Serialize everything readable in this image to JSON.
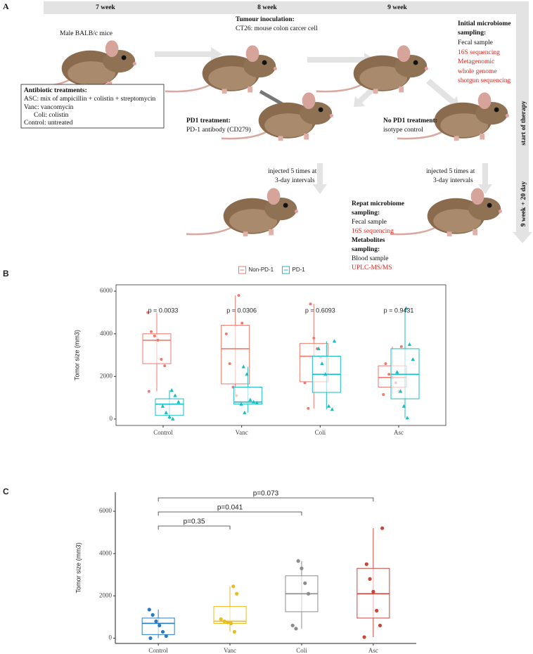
{
  "diagram": {
    "panel_label": "A",
    "timeline": [
      "7 week",
      "8 week",
      "9 week"
    ],
    "side_labels": [
      "start of therapy",
      "9 week + 20 day"
    ],
    "mouse_label": "Male BALB/c mice",
    "antibiotics": [
      "Antibiotic treatments:",
      "ASC: mix of ampicillin + colistin + streptomycin",
      "Vanc: vancomycin",
      "Coli: colistin",
      "Control: untreated"
    ],
    "inoculation": [
      "Tumour inoculation:",
      "CT26: mouse colon carcer cell"
    ],
    "initial_sampling": [
      "Initial microbiome",
      "sampling:",
      "Fecal sample",
      "16S sequencing",
      "Metagenomic",
      "whole genome",
      "shotgun sequencing"
    ],
    "pd1": [
      "PD1 treatment:",
      "PD-1 antibody (CD279)"
    ],
    "no_pd1": [
      "No PD1 treatment:",
      "isotype control"
    ],
    "injection_left": [
      "injected 5 times at",
      "3-day intervals"
    ],
    "injection_right": [
      "injected 5 times at",
      "3-day intervals"
    ],
    "repeat_sampling": [
      "Repat microbiome",
      "sampling:",
      "Fecal sample",
      "16S sequencing",
      "Metabolites",
      "sampling:",
      "Blood sample",
      "UPLC-MS/MS"
    ]
  },
  "chart_data": [
    {
      "type": "box",
      "panel_label": "B",
      "ylabel": "Tomor size (mm3)",
      "ylim": [
        -300,
        6300
      ],
      "yticks": [
        0,
        2000,
        4000,
        6000
      ],
      "legend": "top",
      "categories": [
        "Control",
        "Vanc",
        "Coli",
        "Asc"
      ],
      "annotations": [
        "p = 0.0033",
        "p = 0.0306",
        "p = 0.6093",
        "p = 0.9431"
      ],
      "series": [
        {
          "name": "Non-PD-1",
          "color": "#f07a6e",
          "boxes": [
            {
              "whislo": 1300,
              "q1": 2600,
              "med": 3700,
              "q3": 4000,
              "whishi": 5000,
              "points": [
                5000,
                4100,
                3900,
                3700,
                2800,
                2500,
                1300
              ]
            },
            {
              "whislo": 1100,
              "q1": 1650,
              "med": 3300,
              "q3": 4400,
              "whishi": 5800,
              "points": [
                5800,
                4500,
                4000,
                2600,
                1500,
                1100
              ]
            },
            {
              "whislo": 500,
              "q1": 1750,
              "med": 2950,
              "q3": 3550,
              "whishi": 5400,
              "points": [
                5400,
                3800,
                3300,
                2900,
                1700,
                500
              ]
            },
            {
              "whislo": 1150,
              "q1": 1500,
              "med": 1950,
              "q3": 2500,
              "whishi": 3400,
              "points": [
                3400,
                2600,
                2100,
                1950,
                1700,
                1300,
                1150
              ]
            }
          ]
        },
        {
          "name": "PD-1",
          "color": "#18bcc4",
          "boxes": [
            {
              "whislo": 0,
              "q1": 170,
              "med": 700,
              "q3": 950,
              "whishi": 1350,
              "points": [
                1350,
                1100,
                800,
                600,
                300,
                100,
                0
              ]
            },
            {
              "whislo": 300,
              "q1": 700,
              "med": 800,
              "q3": 1500,
              "whishi": 2450,
              "points": [
                2450,
                2100,
                900,
                800,
                750,
                700,
                300
              ]
            },
            {
              "whislo": 450,
              "q1": 1250,
              "med": 2100,
              "q3": 2950,
              "whishi": 3650,
              "points": [
                3650,
                3300,
                2600,
                2100,
                600,
                450
              ]
            },
            {
              "whislo": 50,
              "q1": 950,
              "med": 2100,
              "q3": 3300,
              "whishi": 5200,
              "points": [
                5200,
                3500,
                2800,
                2200,
                1300,
                600,
                50
              ]
            }
          ]
        }
      ]
    },
    {
      "type": "box",
      "panel_label": "C",
      "ylabel": "Tomor size (mm3)",
      "ylim": [
        -250,
        6900
      ],
      "yticks": [
        0,
        2000,
        4000,
        6000
      ],
      "categories": [
        "Control",
        "Vanc",
        "Coli",
        "Asc"
      ],
      "colors": [
        "#2a7bbf",
        "#e8bb1e",
        "#8c8c8c",
        "#c9453a"
      ],
      "boxes": [
        {
          "whislo": 0,
          "q1": 170,
          "med": 700,
          "q3": 950,
          "whishi": 1350,
          "points": [
            1350,
            1100,
            800,
            600,
            300,
            100,
            0
          ]
        },
        {
          "whislo": 300,
          "q1": 700,
          "med": 800,
          "q3": 1500,
          "whishi": 2450,
          "points": [
            2450,
            2100,
            900,
            800,
            750,
            700,
            300
          ]
        },
        {
          "whislo": 450,
          "q1": 1250,
          "med": 2100,
          "q3": 2950,
          "whishi": 3650,
          "points": [
            3650,
            3300,
            2600,
            2100,
            600,
            450
          ]
        },
        {
          "whislo": 50,
          "q1": 950,
          "med": 2100,
          "q3": 3300,
          "whishi": 5200,
          "points": [
            5200,
            3500,
            2800,
            2200,
            1300,
            600,
            50
          ]
        }
      ],
      "comparisons": [
        {
          "label": "p=0.35",
          "groups": [
            0,
            1
          ]
        },
        {
          "label": "p=0.041",
          "groups": [
            0,
            2
          ]
        },
        {
          "label": "p=0.073",
          "groups": [
            0,
            3
          ]
        }
      ]
    }
  ]
}
